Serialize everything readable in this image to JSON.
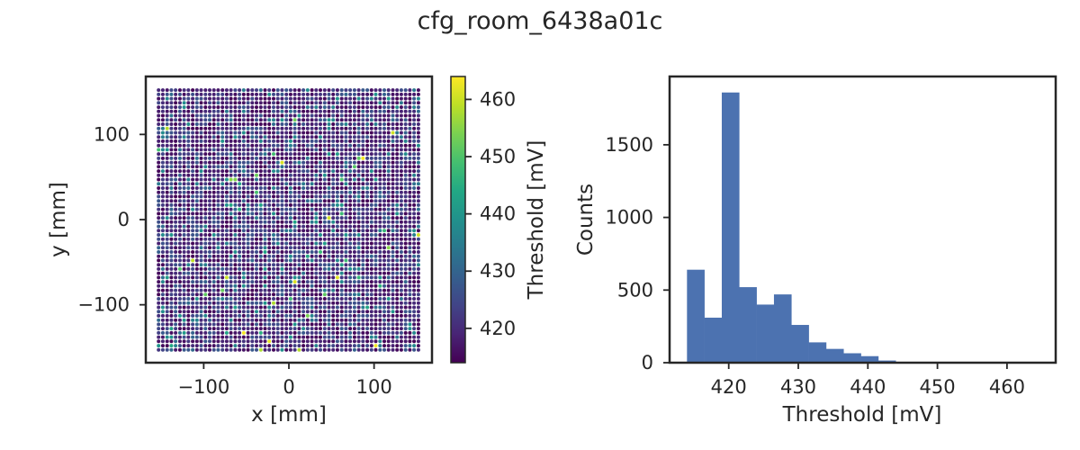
{
  "figure": {
    "title": "cfg_room_6438a01c"
  },
  "chart_data": [
    {
      "type": "scatter",
      "xlabel": "x [mm]",
      "ylabel": "y [mm]",
      "xlim": [
        -168,
        168
      ],
      "ylim": [
        -168,
        168
      ],
      "xticks": [
        -100,
        0,
        100
      ],
      "xtick_labels": [
        "−100",
        "0",
        "100"
      ],
      "yticks": [
        -100,
        0,
        100
      ],
      "ytick_labels": [
        "−100",
        "0",
        "100"
      ],
      "grid": false,
      "points": {
        "layout": "square pixel grid",
        "x_range": [
          -153,
          153
        ],
        "y_range": [
          -153,
          153
        ],
        "pitch": 5,
        "value_distribution": "mostly 414-430 mV (dark purple to teal), few up to 464 mV (yellow)"
      },
      "colorbar": {
        "label": "Threshold [mV]",
        "colormap": "viridis",
        "range": [
          414,
          464
        ],
        "ticks": [
          420,
          430,
          440,
          450,
          460
        ],
        "tick_labels": [
          "420",
          "430",
          "440",
          "450",
          "460"
        ]
      }
    },
    {
      "type": "bar",
      "subtype": "histogram",
      "xlabel": "Threshold [mV]",
      "ylabel": "Counts",
      "xlim": [
        411.5,
        467
      ],
      "ylim": [
        0,
        1970
      ],
      "xticks": [
        420,
        430,
        440,
        450,
        460
      ],
      "xtick_labels": [
        "420",
        "430",
        "440",
        "450",
        "460"
      ],
      "yticks": [
        0,
        500,
        1000,
        1500
      ],
      "ytick_labels": [
        "0",
        "500",
        "1000",
        "1500"
      ],
      "grid": false,
      "bin_width": 2.5,
      "bin_start": 414.0,
      "counts": [
        640,
        310,
        1860,
        520,
        400,
        470,
        260,
        140,
        95,
        65,
        45,
        15,
        6,
        3,
        2,
        2,
        1,
        1,
        1,
        1
      ],
      "color": "#4c72b0"
    }
  ]
}
